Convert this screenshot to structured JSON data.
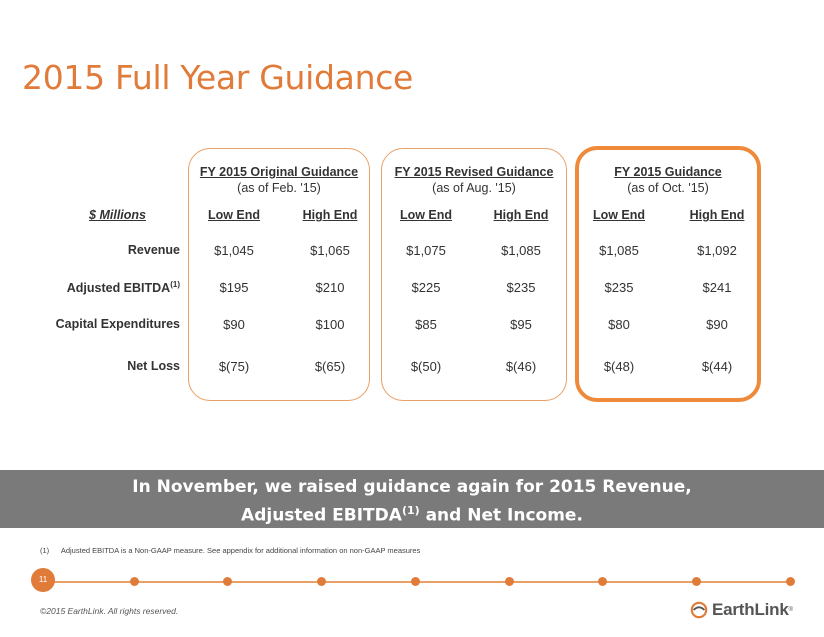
{
  "title": "2015 Full Year Guidance",
  "table": {
    "unit_label": "$ Millions",
    "groups": [
      {
        "title": "FY 2015 Original Guidance",
        "subtitle": "(as of Feb. '15)",
        "low": "Low End",
        "high": "High End"
      },
      {
        "title": "FY 2015 Revised Guidance",
        "subtitle": "(as of Aug. '15)",
        "low": "Low End",
        "high": "High End"
      },
      {
        "title": "FY 2015 Guidance",
        "subtitle": "(as of Oct. '15)",
        "low": "Low End",
        "high": "High End"
      }
    ],
    "rows": [
      {
        "label": "Revenue",
        "sup": "",
        "values": [
          "$1,045",
          "$1,065",
          "$1,075",
          "$1,085",
          "$1,085",
          "$1,092"
        ]
      },
      {
        "label": "Adjusted EBITDA",
        "sup": "(1)",
        "values": [
          "$195",
          "$210",
          "$225",
          "$235",
          "$235",
          "$241"
        ]
      },
      {
        "label": "Capital Expenditures",
        "sup": "",
        "values": [
          "$90",
          "$100",
          "$85",
          "$95",
          "$80",
          "$90"
        ]
      },
      {
        "label": "Net Loss",
        "sup": "",
        "values": [
          "$(75)",
          "$(65)",
          "$(50)",
          "$(46)",
          "$(48)",
          "$(44)"
        ]
      }
    ]
  },
  "banner": {
    "line1": "In November, we raised guidance again for 2015 Revenue,",
    "line2_pre": "Adjusted EBITDA",
    "line2_sup": "(1)",
    "line2_post": " and Net Income."
  },
  "footnote": {
    "num": "(1)",
    "text": "Adjusted EBITDA is a Non-GAAP measure.  See appendix for additional information on non-GAAP measures"
  },
  "page_number": "11",
  "copyright": "©2015 EarthLink. All rights reserved.",
  "logo": {
    "text": "EarthLink",
    "reg": "®",
    "icon": "earthlink-swirl-icon"
  },
  "colors": {
    "accent": "#e07b39",
    "banner": "#7a7a7a"
  }
}
